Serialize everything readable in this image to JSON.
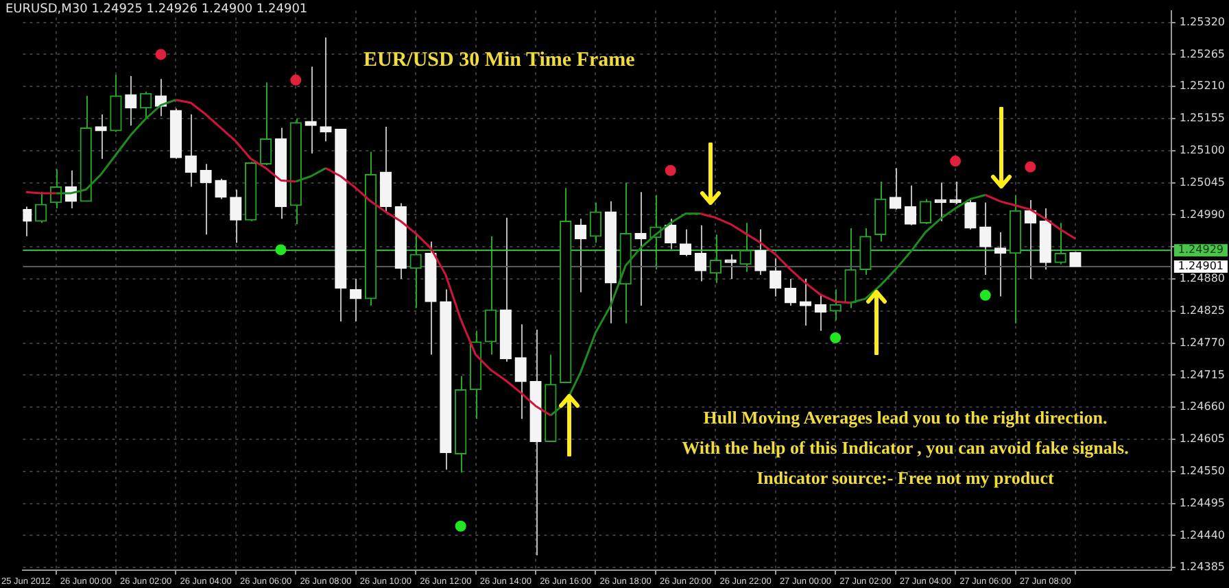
{
  "chart_data": {
    "type": "candlestick",
    "title": "EUR/USD 30 Min Time Frame",
    "subtitle": "EURUSD,M30  1.24925 1.24926 1.24900 1.24901",
    "annotations": [
      "Hull Moving Averages lead you to the right direction.",
      "With the help of this Indicator , you can avoid fake signals.",
      "Indicator source:- Free not my product"
    ],
    "x": [
      "2012-06-25T22:00",
      "2012-06-25T22:30",
      "2012-06-25T23:00",
      "2012-06-25T23:30",
      "2012-06-26T00:00",
      "2012-06-26T00:30",
      "2012-06-26T01:00",
      "2012-06-26T01:30",
      "2012-06-26T02:00",
      "2012-06-26T02:30",
      "2012-06-26T03:00",
      "2012-06-26T03:30",
      "2012-06-26T04:00",
      "2012-06-26T04:30",
      "2012-06-26T05:00",
      "2012-06-26T05:30",
      "2012-06-26T06:00",
      "2012-06-26T06:30",
      "2012-06-26T07:00",
      "2012-06-26T07:30",
      "2012-06-26T08:00",
      "2012-06-26T08:30",
      "2012-06-26T09:00",
      "2012-06-26T09:30",
      "2012-06-26T10:00",
      "2012-06-26T10:30",
      "2012-06-26T11:00",
      "2012-06-26T11:30",
      "2012-06-26T12:00",
      "2012-06-26T12:30",
      "2012-06-26T13:00",
      "2012-06-26T13:30",
      "2012-06-26T14:00",
      "2012-06-26T14:30",
      "2012-06-26T15:00",
      "2012-06-26T15:30",
      "2012-06-26T16:00",
      "2012-06-26T16:30",
      "2012-06-26T17:00",
      "2012-06-26T17:30",
      "2012-06-26T18:00",
      "2012-06-26T18:30",
      "2012-06-26T19:00",
      "2012-06-26T19:30",
      "2012-06-26T20:00",
      "2012-06-26T20:30",
      "2012-06-26T21:00",
      "2012-06-26T21:30",
      "2012-06-26T22:00",
      "2012-06-26T22:30",
      "2012-06-26T23:00",
      "2012-06-26T23:30",
      "2012-06-27T00:00",
      "2012-06-27T00:30",
      "2012-06-27T01:00",
      "2012-06-27T01:30",
      "2012-06-27T02:00",
      "2012-06-27T02:30",
      "2012-06-27T03:00",
      "2012-06-27T03:30",
      "2012-06-27T04:00",
      "2012-06-27T04:30",
      "2012-06-27T05:00",
      "2012-06-27T05:30",
      "2012-06-27T06:00",
      "2012-06-27T06:30",
      "2012-06-27T07:00",
      "2012-06-27T07:30",
      "2012-06-27T08:00",
      "2012-06-27T08:30",
      "2012-06-27T09:00"
    ],
    "ohlc": [
      [
        1.24999,
        1.25004,
        1.24953,
        1.24979
      ],
      [
        1.24979,
        1.25029,
        1.24976,
        1.25008
      ],
      [
        1.25011,
        1.25068,
        1.25001,
        1.25038
      ],
      [
        1.25038,
        1.25066,
        1.25001,
        1.25013
      ],
      [
        1.25013,
        1.25194,
        1.25013,
        1.25139
      ],
      [
        1.25141,
        1.25162,
        1.25086,
        1.25134
      ],
      [
        1.25134,
        1.2523,
        1.25132,
        1.25194
      ],
      [
        1.25196,
        1.25228,
        1.25143,
        1.25173
      ],
      [
        1.25173,
        1.25201,
        1.25155,
        1.25198
      ],
      [
        1.25194,
        1.25223,
        1.25159,
        1.25176
      ],
      [
        1.25169,
        1.25172,
        1.25086,
        1.25088
      ],
      [
        1.25091,
        1.25162,
        1.25038,
        1.25063
      ],
      [
        1.25066,
        1.25077,
        1.24956,
        1.25045
      ],
      [
        1.25049,
        1.25052,
        1.25017,
        1.2502
      ],
      [
        1.2502,
        1.25033,
        1.24942,
        1.24981
      ],
      [
        1.24981,
        1.25081,
        1.24979,
        1.25079
      ],
      [
        1.25077,
        1.25217,
        1.25075,
        1.2512
      ],
      [
        1.2512,
        1.25139,
        1.24983,
        1.25004
      ],
      [
        1.25006,
        1.25155,
        1.24974,
        1.25148
      ],
      [
        1.2515,
        1.25244,
        1.25095,
        1.25143
      ],
      [
        1.25141,
        1.25294,
        1.25116,
        1.25132
      ],
      [
        1.25137,
        1.25137,
        1.24807,
        1.24864
      ],
      [
        1.24862,
        1.2488,
        1.24807,
        1.24846
      ],
      [
        1.24846,
        1.25098,
        1.24834,
        1.25059
      ],
      [
        1.25063,
        1.25141,
        1.24995,
        1.25004
      ],
      [
        1.25004,
        1.2501,
        1.2488,
        1.24898
      ],
      [
        1.24898,
        1.24956,
        1.2483,
        1.24922
      ],
      [
        1.24924,
        1.24944,
        1.2475,
        1.24841
      ],
      [
        1.24841,
        1.24862,
        1.24553,
        1.24582
      ],
      [
        1.2458,
        1.24713,
        1.24548,
        1.2469
      ],
      [
        1.2469,
        1.24791,
        1.2464,
        1.24772
      ],
      [
        1.24772,
        1.24953,
        1.2475,
        1.24827
      ],
      [
        1.24827,
        1.24985,
        1.24738,
        1.24743
      ],
      [
        1.24745,
        1.24802,
        1.2464,
        1.24704
      ],
      [
        1.24704,
        1.24793,
        1.24406,
        1.24601
      ],
      [
        1.24601,
        1.2475,
        1.24601,
        1.24699
      ],
      [
        1.24702,
        1.25036,
        1.24702,
        1.24979
      ],
      [
        1.24972,
        1.24983,
        1.24857,
        1.24949
      ],
      [
        1.24953,
        1.25011,
        1.24942,
        1.24995
      ],
      [
        1.24995,
        1.25013,
        1.24804,
        1.24873
      ],
      [
        1.24871,
        1.25045,
        1.24804,
        1.24958
      ],
      [
        1.24958,
        1.25029,
        1.24834,
        1.24949
      ],
      [
        1.24951,
        1.25024,
        1.24896,
        1.24969
      ],
      [
        1.24972,
        1.24983,
        1.24931,
        1.24942
      ],
      [
        1.2494,
        1.24965,
        1.24919,
        1.24922
      ],
      [
        1.24924,
        1.24972,
        1.24876,
        1.24894
      ],
      [
        1.2489,
        1.24956,
        1.24873,
        1.24912
      ],
      [
        1.24912,
        1.24922,
        1.2488,
        1.24908
      ],
      [
        1.24905,
        1.24976,
        1.24892,
        1.24929
      ],
      [
        1.24929,
        1.24965,
        1.24887,
        1.24894
      ],
      [
        1.24894,
        1.24915,
        1.2485,
        1.24864
      ],
      [
        1.24864,
        1.2488,
        1.24834,
        1.24839
      ],
      [
        1.24841,
        1.2488,
        1.248,
        1.24834
      ],
      [
        1.24836,
        1.24853,
        1.24791,
        1.24823
      ],
      [
        1.24825,
        1.24862,
        1.24809,
        1.24836
      ],
      [
        1.24839,
        1.24967,
        1.2483,
        1.24896
      ],
      [
        1.24896,
        1.24967,
        1.24887,
        1.24953
      ],
      [
        1.24956,
        1.25047,
        1.24944,
        1.25017
      ],
      [
        1.2502,
        1.2507,
        1.24999,
        1.25001
      ],
      [
        1.25004,
        1.2504,
        1.24972,
        1.24974
      ],
      [
        1.24976,
        1.25017,
        1.24974,
        1.25013
      ],
      [
        1.25015,
        1.25045,
        1.24979,
        1.25011
      ],
      [
        1.25015,
        1.25047,
        1.25008,
        1.25011
      ],
      [
        1.25011,
        1.25015,
        1.24965,
        1.24967
      ],
      [
        1.24969,
        1.25011,
        1.24887,
        1.24935
      ],
      [
        1.24933,
        1.2496,
        1.2485,
        1.24924
      ],
      [
        1.24924,
        1.25024,
        1.24804,
        1.24997
      ],
      [
        1.24997,
        1.25015,
        1.2488,
        1.24976
      ],
      [
        1.24979,
        1.25001,
        1.24896,
        1.24908
      ],
      [
        1.24908,
        1.24976,
        1.24905,
        1.24924
      ],
      [
        1.24925,
        1.24926,
        1.249,
        1.24901
      ]
    ],
    "series": [
      {
        "type": "line",
        "color": "#d2143c",
        "values": [
          1.25029,
          1.25027,
          1.25027,
          null,
          null,
          null,
          null,
          null,
          null,
          null,
          1.25187,
          1.25182,
          1.25162,
          1.25139,
          1.25116,
          1.25086,
          1.2507,
          1.25049,
          1.25047,
          null,
          1.2507,
          1.25056,
          1.25036,
          1.25013,
          1.24995,
          1.24979,
          1.24958,
          1.24933,
          1.24887,
          1.24811,
          1.2475,
          1.24724,
          1.24706,
          1.24685,
          1.24662,
          1.24646,
          null,
          null,
          null,
          null,
          null,
          null,
          null,
          null,
          null,
          1.24992,
          1.24985,
          1.24974,
          1.24958,
          1.24942,
          1.24922,
          1.24896,
          1.24873,
          1.24853,
          1.24841,
          1.24839,
          null,
          null,
          null,
          null,
          null,
          null,
          null,
          null,
          1.25024,
          1.25013,
          1.25006,
          1.24999,
          1.24983,
          1.24965,
          1.24949
        ]
      },
      {
        "type": "line",
        "color": "#1e8c1e",
        "values": [
          null,
          null,
          1.25027,
          1.25027,
          1.25033,
          1.25059,
          1.25093,
          1.25127,
          1.25155,
          1.25178,
          1.25187,
          null,
          null,
          null,
          null,
          null,
          null,
          null,
          1.25047,
          1.25056,
          1.2507,
          null,
          null,
          null,
          null,
          null,
          null,
          null,
          null,
          null,
          null,
          null,
          null,
          null,
          null,
          1.24646,
          1.24667,
          1.2472,
          1.24788,
          1.24834,
          1.24903,
          1.24933,
          1.24956,
          1.24976,
          1.24992,
          1.24992,
          null,
          null,
          null,
          null,
          null,
          null,
          null,
          null,
          null,
          1.24839,
          1.24846,
          1.24869,
          1.24896,
          1.24926,
          1.2496,
          1.24983,
          1.25001,
          1.25017,
          1.25024,
          null,
          null,
          null,
          null,
          null,
          null
        ]
      },
      {
        "type": "scatter",
        "color": "#e0203c",
        "marker": "circle",
        "x": [
          "2012-06-26T02:30",
          "2012-06-26T07:00",
          "2012-06-26T19:30",
          "2012-06-27T05:00",
          "2012-06-27T07:30"
        ],
        "values": [
          1.25265,
          1.25221,
          1.25066,
          1.25082,
          1.25072
        ]
      },
      {
        "type": "scatter",
        "color": "#22e622",
        "marker": "circle",
        "x": [
          "2012-06-26T06:30",
          "2012-06-26T12:30",
          "2012-06-27T01:00",
          "2012-06-27T06:00"
        ],
        "values": [
          1.2493,
          1.24456,
          1.24779,
          1.24852
        ]
      }
    ],
    "xlim": [
      "2012-06-25T21:54",
      "2012-06-27T12:12"
    ],
    "xticks": [
      {
        "value": "2012-06-25T22:00",
        "label": "25 Jun 2012"
      },
      {
        "value": "2012-06-26T00:00",
        "label": "26 Jun 00:00"
      },
      {
        "value": "2012-06-26T02:00",
        "label": "26 Jun 02:00"
      },
      {
        "value": "2012-06-26T04:00",
        "label": "26 Jun 04:00"
      },
      {
        "value": "2012-06-26T06:00",
        "label": "26 Jun 06:00"
      },
      {
        "value": "2012-06-26T08:00",
        "label": "26 Jun 08:00"
      },
      {
        "value": "2012-06-26T10:00",
        "label": "26 Jun 10:00"
      },
      {
        "value": "2012-06-26T12:00",
        "label": "26 Jun 12:00"
      },
      {
        "value": "2012-06-26T14:00",
        "label": "26 Jun 14:00"
      },
      {
        "value": "2012-06-26T16:00",
        "label": "26 Jun 16:00"
      },
      {
        "value": "2012-06-26T18:00",
        "label": "26 Jun 18:00"
      },
      {
        "value": "2012-06-26T20:00",
        "label": "26 Jun 20:00"
      },
      {
        "value": "2012-06-26T22:00",
        "label": "26 Jun 22:00"
      },
      {
        "value": "2012-06-27T00:00",
        "label": "27 Jun 00:00"
      },
      {
        "value": "2012-06-27T02:00",
        "label": "27 Jun 02:00"
      },
      {
        "value": "2012-06-27T04:00",
        "label": "27 Jun 04:00"
      },
      {
        "value": "2012-06-27T06:00",
        "label": "27 Jun 06:00"
      },
      {
        "value": "2012-06-27T08:00",
        "label": "27 Jun 08:00"
      }
    ],
    "ylim": [
      1.2438,
      1.2534
    ],
    "yticks": [
      {
        "value": 1.24385,
        "label": "1.24385"
      },
      {
        "value": 1.2444,
        "label": "1.24440"
      },
      {
        "value": 1.24495,
        "label": "1.24495"
      },
      {
        "value": 1.2455,
        "label": "1.24550"
      },
      {
        "value": 1.24605,
        "label": "1.24605"
      },
      {
        "value": 1.2466,
        "label": "1.24660"
      },
      {
        "value": 1.24715,
        "label": "1.24715"
      },
      {
        "value": 1.2477,
        "label": "1.24770"
      },
      {
        "value": 1.24825,
        "label": "1.24825"
      },
      {
        "value": 1.2488,
        "label": "1.24880"
      },
      {
        "value": 1.24935,
        "label": null
      },
      {
        "value": 1.2499,
        "label": "1.24990"
      },
      {
        "value": 1.25045,
        "label": "1.25045"
      },
      {
        "value": 1.251,
        "label": "1.25100"
      },
      {
        "value": 1.25155,
        "label": "1.25155"
      },
      {
        "value": 1.2521,
        "label": "1.25210"
      },
      {
        "value": 1.25265,
        "label": "1.25265"
      },
      {
        "value": 1.2532,
        "label": "1.25320"
      }
    ],
    "ref_lines": [
      {
        "axis": "y",
        "value": 1.24929,
        "label": "1.24929",
        "color": "#4cc34c"
      },
      {
        "axis": "y",
        "value": 1.24901,
        "label": "1.24901",
        "color": "#5a5a5a"
      }
    ],
    "grid": true,
    "legend": false
  }
}
